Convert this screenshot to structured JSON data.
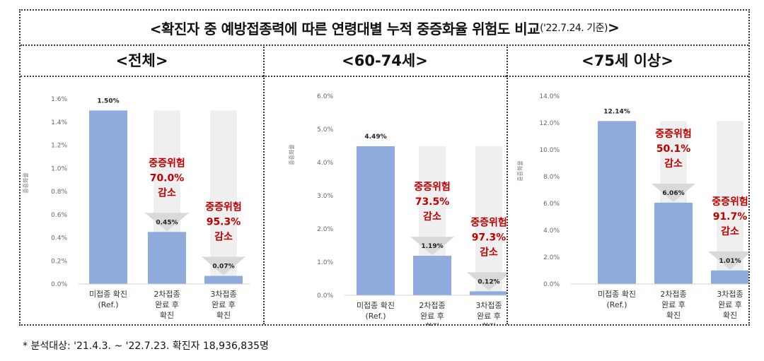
{
  "title": {
    "main": "<확진자 중 예방접종력에 따른 연령대별 누적 중증화율 위험도 비교",
    "date": "('22.7.24. 기준)",
    "close": ">"
  },
  "footnote": "* 분석대상: '21.4.3. ~ '22.7.23. 확진자 18,936,835명",
  "colors": {
    "bar": "#8faadc",
    "ghost": "#efefef",
    "risk_text": "#c00000",
    "arrow": "#d9d9d9"
  },
  "chart_data": [
    {
      "type": "bar",
      "panel_title": "<전체>",
      "ylabel": "중증화율",
      "ylim": [
        0,
        1.6
      ],
      "yticks": [
        "0.0%",
        "0.2%",
        "0.4%",
        "0.6%",
        "0.8%",
        "1.0%",
        "1.2%",
        "1.4%",
        "1.6%"
      ],
      "categories": [
        [
          "미접종 확진",
          "(Ref.)"
        ],
        [
          "2차접종",
          "완료 후",
          "확진"
        ],
        [
          "3차접종",
          "완료 후",
          "확진"
        ]
      ],
      "values": [
        1.5,
        0.45,
        0.07
      ],
      "value_labels": [
        "1.50%",
        "0.45%",
        "0.07%"
      ],
      "risk_reduction": [
        null,
        [
          "중증위험",
          "70.0%",
          "감소"
        ],
        [
          "중증위험",
          "95.3%",
          "감소"
        ]
      ]
    },
    {
      "type": "bar",
      "panel_title": "<60-74세>",
      "ylabel": "중증화율",
      "ylim": [
        0,
        6.0
      ],
      "yticks": [
        "0.0%",
        "1.0%",
        "2.0%",
        "3.0%",
        "4.0%",
        "5.0%",
        "6.0%"
      ],
      "categories": [
        [
          "미접종 확진",
          "(Ref.)"
        ],
        [
          "2차접종",
          "완료 후",
          "확진"
        ],
        [
          "3차접종",
          "완료 후",
          "확진"
        ]
      ],
      "values": [
        4.49,
        1.19,
        0.12
      ],
      "value_labels": [
        "4.49%",
        "1.19%",
        "0.12%"
      ],
      "risk_reduction": [
        null,
        [
          "중증위험",
          "73.5%",
          "감소"
        ],
        [
          "중증위험",
          "97.3%",
          "감소"
        ]
      ]
    },
    {
      "type": "bar",
      "panel_title": "<75세 이상>",
      "ylabel": "중증화율",
      "ylim": [
        0,
        14.0
      ],
      "yticks": [
        "0.0%",
        "2.0%",
        "4.0%",
        "6.0%",
        "8.0%",
        "10.0%",
        "12.0%",
        "14.0%"
      ],
      "categories": [
        [
          "미접종 확진",
          "(Ref.)"
        ],
        [
          "2차접종",
          "완료 후",
          "확진"
        ],
        [
          "3차접종",
          "완료 후",
          "확진"
        ]
      ],
      "values": [
        12.14,
        6.06,
        1.01
      ],
      "value_labels": [
        "12.14%",
        "6.06%",
        "1.01%"
      ],
      "risk_reduction": [
        null,
        [
          "중증위험",
          "50.1%",
          "감소"
        ],
        [
          "중증위험",
          "91.7%",
          "감소"
        ]
      ]
    }
  ]
}
